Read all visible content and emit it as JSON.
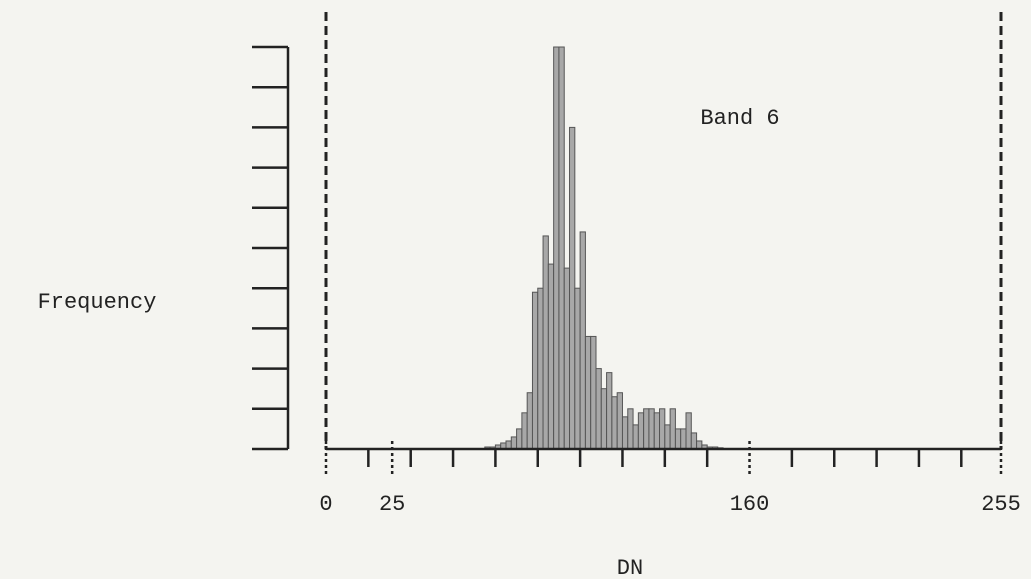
{
  "chart_data": {
    "type": "histogram",
    "annotations": [
      "Band 6"
    ],
    "ylabel": "Frequency",
    "xlabel": "DN",
    "bins": [
      60,
      62,
      64,
      66,
      68,
      70,
      72,
      74,
      76,
      78,
      80,
      82,
      84,
      86,
      88,
      90,
      92,
      94,
      96,
      98,
      100,
      102,
      104,
      106,
      108,
      110,
      112,
      114,
      116,
      118,
      120,
      122,
      124,
      126,
      128,
      130,
      132,
      134,
      136,
      138,
      140,
      142,
      144,
      146,
      148,
      150
    ],
    "values": [
      0.05,
      0.05,
      0.1,
      0.15,
      0.2,
      0.3,
      0.5,
      0.9,
      1.4,
      3.9,
      4.0,
      5.3,
      4.6,
      10.0,
      10.0,
      4.5,
      8.0,
      4.0,
      5.4,
      2.8,
      2.8,
      2.0,
      1.5,
      1.9,
      1.3,
      1.4,
      0.8,
      1.0,
      0.6,
      0.9,
      1.0,
      1.0,
      0.9,
      1.0,
      0.6,
      1.0,
      0.5,
      0.5,
      0.9,
      0.4,
      0.2,
      0.1,
      0.05,
      0.05,
      0.03
    ],
    "color": "#a8a8a8",
    "xlim": [
      0,
      255
    ],
    "xticks": [
      0,
      25,
      160,
      255
    ],
    "xminor_ticks": [
      16,
      32,
      48,
      64,
      80,
      96,
      112,
      128,
      144,
      176,
      192,
      208,
      224,
      240
    ],
    "ylim": [
      0,
      10
    ],
    "yticks": [
      0,
      1,
      2,
      3,
      4,
      5,
      6,
      7,
      8,
      9,
      10
    ]
  }
}
